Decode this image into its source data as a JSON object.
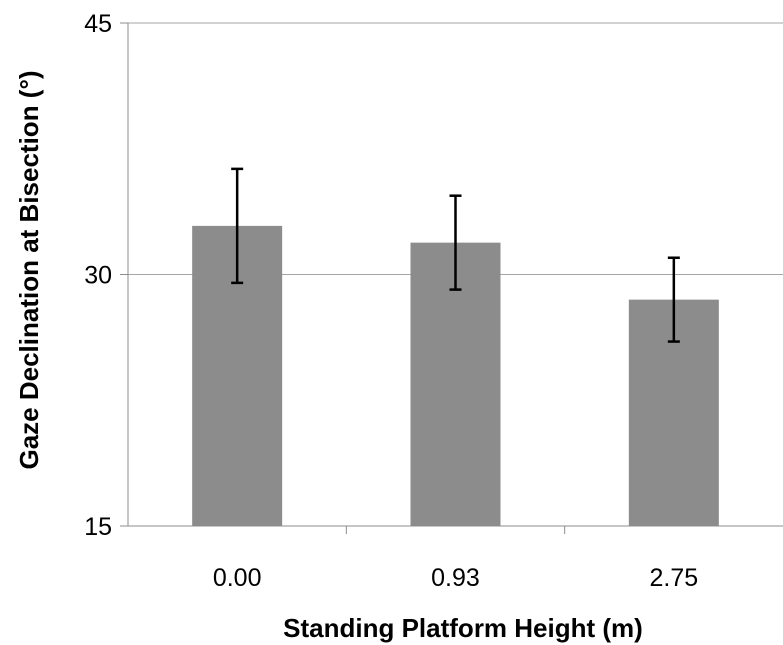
{
  "chart_data": {
    "type": "bar",
    "title": "",
    "xlabel": "Standing Platform Height (m)",
    "ylabel": "Gaze Declination at Bisection (°)",
    "categories": [
      "0.00",
      "0.93",
      "2.75"
    ],
    "values": [
      32.9,
      31.9,
      28.5
    ],
    "error": [
      3.4,
      2.8,
      2.5
    ],
    "ylim": [
      15,
      45
    ],
    "yticks": [
      "15",
      "30",
      "45"
    ],
    "grid": true,
    "legend": "none",
    "colors": {
      "bar": "#8c8c8c",
      "error_bar": "#000000",
      "grid": "#a6a6a6",
      "axis": "#8c8c8c"
    }
  }
}
